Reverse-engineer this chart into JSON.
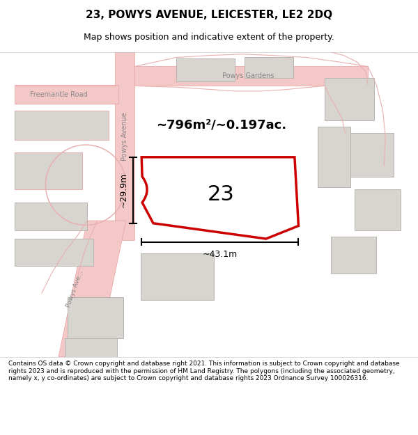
{
  "title": "23, POWYS AVENUE, LEICESTER, LE2 2DQ",
  "subtitle": "Map shows position and indicative extent of the property.",
  "footer": "Contains OS data © Crown copyright and database right 2021. This information is subject to Crown copyright and database rights 2023 and is reproduced with the permission of HM Land Registry. The polygons (including the associated geometry, namely x, y co-ordinates) are subject to Crown copyright and database rights 2023 Ordnance Survey 100026316.",
  "area_label": "~796m²/~0.197ac.",
  "number_label": "23",
  "dim_width": "~43.1m",
  "dim_height": "~29.9m",
  "map_bg": "#f2ece8",
  "road_color": "#f5c8c8",
  "road_stroke": "#e8a0a0",
  "building_fill": "#d8d4d0",
  "building_stroke": "#b8b4b0",
  "property_fill": "#ffffff",
  "property_stroke": "#cc0000",
  "road_line_color": "#e8b0b0",
  "street_label_color": "#888888",
  "dim_color": "#000000",
  "title_color": "#000000",
  "footer_color": "#000000"
}
